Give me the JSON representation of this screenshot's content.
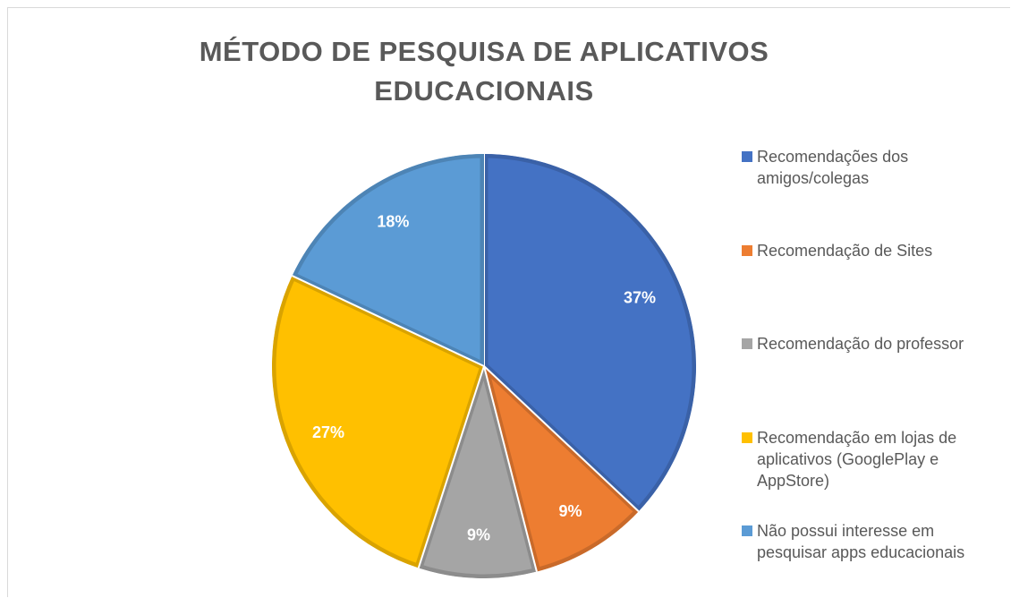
{
  "chart_data": {
    "type": "pie",
    "title": "MÉTODO DE PESQUISA DE APLICATIVOS EDUCACIONAIS",
    "categories": [
      "Recomendações dos amigos/colegas",
      "Recomendação de Sites",
      "Recomendação do professor",
      "Recomendação em lojas de aplicativos (GooglePlay e AppStore)",
      "Não possui interesse em pesquisar apps educacionais"
    ],
    "values": [
      37,
      9,
      9,
      27,
      18
    ],
    "value_labels": [
      "37%",
      "9%",
      "9%",
      "27%",
      "18%"
    ],
    "colors": [
      "#4472c4",
      "#ed7d31",
      "#a5a5a5",
      "#ffc000",
      "#5b9bd5"
    ],
    "legend": "right"
  }
}
